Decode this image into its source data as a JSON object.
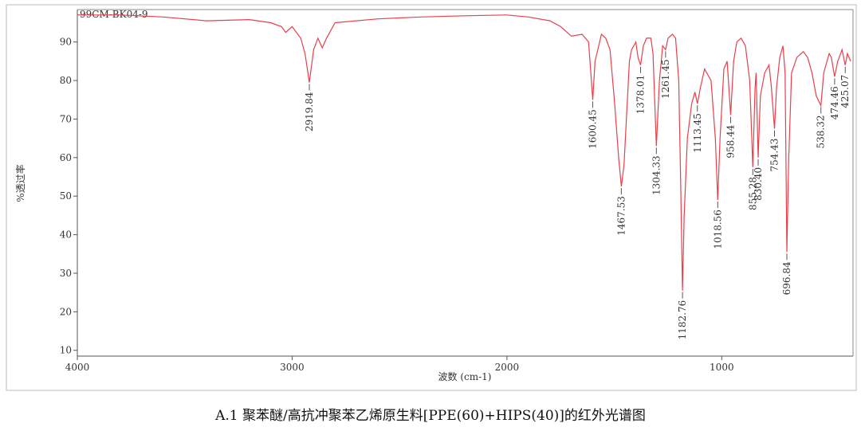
{
  "chart_data": {
    "type": "line",
    "sample_label": "99CM-BK04-9",
    "ylabel": "%透过率",
    "xlabel": "波数 (cm-1)",
    "caption": "A.1 聚苯醚/高抗冲聚苯乙烯原生料[PPE(60)+HIPS(40)]的红外光谱图",
    "color": "#e8404a",
    "xlim": [
      4000,
      400
    ],
    "ylim": [
      8.5,
      98
    ],
    "xticks": [
      4000,
      3000,
      2000,
      1000
    ],
    "yticks": [
      10,
      20,
      30,
      40,
      50,
      60,
      70,
      80,
      90
    ],
    "x": [
      4000,
      3800,
      3600,
      3400,
      3200,
      3100,
      3050,
      3030,
      3000,
      2960,
      2940,
      2919.84,
      2900,
      2880,
      2860,
      2840,
      2800,
      2600,
      2400,
      2200,
      2000,
      1900,
      1800,
      1750,
      1700,
      1650,
      1620,
      1600.45,
      1590,
      1560,
      1540,
      1520,
      1500,
      1480,
      1467.53,
      1455,
      1430,
      1420,
      1400,
      1390,
      1378.01,
      1365,
      1350,
      1330,
      1320,
      1304.33,
      1290,
      1275,
      1261.45,
      1250,
      1230,
      1215,
      1200,
      1190,
      1182.76,
      1175,
      1160,
      1140,
      1125,
      1113.45,
      1100,
      1080,
      1050,
      1030,
      1018.56,
      1008,
      990,
      975,
      958.44,
      945,
      930,
      910,
      890,
      870,
      855.28,
      845,
      840,
      830.4,
      820,
      800,
      780,
      770,
      754.43,
      745,
      730,
      715,
      705,
      696.84,
      688,
      675,
      650,
      620,
      600,
      580,
      560,
      538.32,
      525,
      500,
      490,
      474.46,
      460,
      440,
      425.07,
      415,
      400
    ],
    "values": [
      97,
      97,
      96.5,
      95.5,
      95.8,
      95,
      94,
      92.5,
      94,
      91,
      87,
      79.5,
      88,
      91,
      88.5,
      91,
      95,
      96,
      96.5,
      96.8,
      97,
      96.5,
      95.5,
      94,
      91.5,
      92,
      90,
      75,
      85,
      92,
      91,
      88,
      75,
      60,
      52.5,
      58,
      85,
      88,
      90,
      86,
      84,
      89,
      91,
      91,
      87,
      63,
      80,
      89,
      88,
      91,
      92,
      91,
      80,
      50,
      25.5,
      45,
      65,
      74,
      77,
      74,
      78,
      83,
      80,
      65,
      49,
      65,
      83,
      85,
      71,
      85,
      90,
      91,
      89,
      80,
      57.5,
      78,
      82,
      60,
      76,
      82,
      84,
      79,
      67.5,
      78,
      86,
      89,
      82,
      35.5,
      60,
      82,
      86,
      87.5,
      86,
      82,
      76,
      73.5,
      82,
      87,
      86,
      81,
      85,
      88,
      84,
      87,
      85
    ],
    "peaks": [
      {
        "x": 2919.84,
        "y": 79.5,
        "label": "2919.84"
      },
      {
        "x": 1600.45,
        "y": 75,
        "label": "1600.45"
      },
      {
        "x": 1467.53,
        "y": 52.5,
        "label": "1467.53"
      },
      {
        "x": 1378.01,
        "y": 84,
        "label": "1378.01"
      },
      {
        "x": 1304.33,
        "y": 63,
        "label": "1304.33"
      },
      {
        "x": 1261.45,
        "y": 88,
        "label": "1261.45"
      },
      {
        "x": 1182.76,
        "y": 25.5,
        "label": "1182.76"
      },
      {
        "x": 1113.45,
        "y": 74,
        "label": "1113.45"
      },
      {
        "x": 1018.56,
        "y": 49,
        "label": "1018.56"
      },
      {
        "x": 958.44,
        "y": 71,
        "label": "958.44"
      },
      {
        "x": 855.28,
        "y": 57.5,
        "label": "855.28"
      },
      {
        "x": 830.4,
        "y": 60,
        "label": "830.40"
      },
      {
        "x": 754.43,
        "y": 67.5,
        "label": "754.43"
      },
      {
        "x": 696.84,
        "y": 35.5,
        "label": "696.84"
      },
      {
        "x": 538.32,
        "y": 73.5,
        "label": "538.32"
      },
      {
        "x": 474.46,
        "y": 81,
        "label": "474.46"
      },
      {
        "x": 425.07,
        "y": 84,
        "label": "425.07"
      }
    ]
  }
}
